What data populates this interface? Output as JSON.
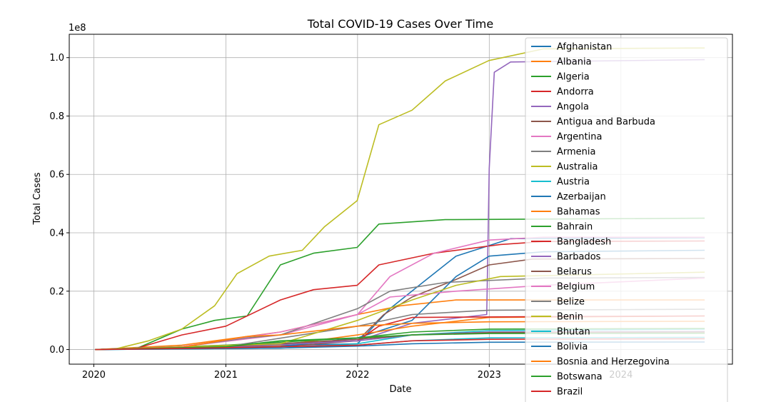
{
  "chart_data": {
    "type": "line",
    "title": "Total COVID-19 Cases Over Time",
    "xlabel": "Date",
    "ylabel": "Total Cases",
    "y_offset_text": "1e8",
    "xlim": [
      "2019-10-25",
      "2024-11-05"
    ],
    "ylim": [
      -5000000,
      108000000
    ],
    "x_ticks": [
      "2020",
      "2021",
      "2022",
      "2023",
      "2024"
    ],
    "y_ticks": [
      0,
      20000000,
      40000000,
      60000000,
      80000000,
      100000000
    ],
    "y_tick_labels": [
      "0.0",
      "0.2",
      "0.4",
      "0.6",
      "0.8",
      "1.0"
    ],
    "grid": true,
    "legend_position": "right",
    "series": [
      {
        "name": "Afghanistan",
        "color": "#1f77b4",
        "points": [
          [
            "2020-01-05",
            0
          ],
          [
            "2022-01-01",
            2000000
          ],
          [
            "2022-04-01",
            14000000
          ],
          [
            "2022-07-01",
            23000000
          ],
          [
            "2022-10-01",
            32000000
          ],
          [
            "2023-03-01",
            38000000
          ],
          [
            "2024-08-20",
            38300000
          ]
        ]
      },
      {
        "name": "Albania",
        "color": "#ff7f0e",
        "points": [
          [
            "2020-01-05",
            0
          ],
          [
            "2020-09-01",
            1500000
          ],
          [
            "2021-06-01",
            6000000
          ],
          [
            "2022-01-01",
            12000000
          ],
          [
            "2022-05-01",
            15000000
          ],
          [
            "2022-10-01",
            17000000
          ],
          [
            "2024-08-20",
            17000000
          ]
        ]
      },
      {
        "name": "Algeria",
        "color": "#2ca02c",
        "points": [
          [
            "2020-01-05",
            0
          ],
          [
            "2020-05-01",
            500000
          ],
          [
            "2020-09-01",
            7000000
          ],
          [
            "2020-12-01",
            10000000
          ],
          [
            "2021-03-01",
            11500000
          ],
          [
            "2021-06-01",
            29000000
          ],
          [
            "2021-09-01",
            33000000
          ],
          [
            "2021-12-31",
            35000000
          ],
          [
            "2022-03-01",
            43000000
          ],
          [
            "2022-09-01",
            44500000
          ],
          [
            "2024-08-20",
            45000000
          ]
        ]
      },
      {
        "name": "Andorra",
        "color": "#d62728",
        "points": [
          [
            "2020-01-05",
            0
          ],
          [
            "2020-05-01",
            500000
          ],
          [
            "2020-09-01",
            5000000
          ],
          [
            "2021-01-01",
            8000000
          ],
          [
            "2021-06-01",
            17000000
          ],
          [
            "2021-09-01",
            20500000
          ],
          [
            "2021-12-31",
            22000000
          ],
          [
            "2022-03-01",
            29000000
          ],
          [
            "2022-08-01",
            33000000
          ],
          [
            "2023-02-01",
            36000000
          ],
          [
            "2023-06-01",
            37000000
          ],
          [
            "2024-08-20",
            37200000
          ]
        ]
      },
      {
        "name": "Angola",
        "color": "#9467bd",
        "points": [
          [
            "2020-01-05",
            0
          ],
          [
            "2022-01-01",
            3000000
          ],
          [
            "2022-06-01",
            9000000
          ],
          [
            "2022-12-25",
            12000000
          ],
          [
            "2023-01-01",
            62000000
          ],
          [
            "2023-01-15",
            95000000
          ],
          [
            "2023-03-01",
            98500000
          ],
          [
            "2024-08-20",
            99300000
          ]
        ]
      },
      {
        "name": "Antigua and Barbuda",
        "color": "#8c564b",
        "points": [
          [
            "2020-01-05",
            0
          ],
          [
            "2021-06-01",
            1000000
          ],
          [
            "2022-01-01",
            3000000
          ],
          [
            "2022-03-15",
            12000000
          ],
          [
            "2022-06-01",
            18000000
          ],
          [
            "2022-10-01",
            24000000
          ],
          [
            "2023-01-01",
            29000000
          ],
          [
            "2023-05-01",
            31000000
          ],
          [
            "2024-08-20",
            31200000
          ]
        ]
      },
      {
        "name": "Argentina",
        "color": "#e377c2",
        "points": [
          [
            "2020-01-05",
            0
          ],
          [
            "2020-09-01",
            1000000
          ],
          [
            "2021-06-01",
            5000000
          ],
          [
            "2022-01-01",
            12000000
          ],
          [
            "2022-04-01",
            25000000
          ],
          [
            "2022-08-01",
            33000000
          ],
          [
            "2023-01-01",
            37500000
          ],
          [
            "2023-06-01",
            38500000
          ],
          [
            "2024-08-20",
            38500000
          ]
        ]
      },
      {
        "name": "Armenia",
        "color": "#7f7f7f",
        "points": [
          [
            "2020-01-05",
            0
          ],
          [
            "2020-09-01",
            1000000
          ],
          [
            "2021-03-01",
            4000000
          ],
          [
            "2021-06-01",
            5000000
          ],
          [
            "2022-01-01",
            14000000
          ],
          [
            "2022-04-01",
            20000000
          ],
          [
            "2022-09-01",
            23000000
          ],
          [
            "2023-06-01",
            24500000
          ],
          [
            "2024-08-20",
            24700000
          ]
        ]
      },
      {
        "name": "Australia",
        "color": "#bcbd22",
        "points": [
          [
            "2020-01-05",
            0
          ],
          [
            "2020-03-01",
            200000
          ],
          [
            "2020-06-01",
            3000000
          ],
          [
            "2020-09-01",
            7000000
          ],
          [
            "2020-12-01",
            15000000
          ],
          [
            "2021-02-01",
            26000000
          ],
          [
            "2021-05-01",
            32000000
          ],
          [
            "2021-08-01",
            34000000
          ],
          [
            "2021-10-01",
            42000000
          ],
          [
            "2021-12-31",
            51000000
          ],
          [
            "2022-03-01",
            77000000
          ],
          [
            "2022-06-01",
            82000000
          ],
          [
            "2022-09-01",
            92000000
          ],
          [
            "2022-12-31",
            99000000
          ],
          [
            "2023-06-01",
            103000000
          ],
          [
            "2024-08-20",
            103300000
          ]
        ]
      },
      {
        "name": "Austria",
        "color": "#17becf",
        "points": [
          [
            "2020-01-05",
            0
          ],
          [
            "2021-06-01",
            500000
          ],
          [
            "2022-01-01",
            2000000
          ],
          [
            "2022-06-01",
            5000000
          ],
          [
            "2023-01-01",
            6500000
          ],
          [
            "2024-08-20",
            7000000
          ]
        ]
      },
      {
        "name": "Azerbaijan",
        "color": "#1f77b4",
        "points": [
          [
            "2020-01-05",
            0
          ],
          [
            "2021-06-01",
            1000000
          ],
          [
            "2022-01-01",
            4000000
          ],
          [
            "2022-06-01",
            10000000
          ],
          [
            "2022-10-01",
            25000000
          ],
          [
            "2023-01-01",
            32000000
          ],
          [
            "2023-06-01",
            33500000
          ],
          [
            "2024-08-20",
            34000000
          ]
        ]
      },
      {
        "name": "Bahamas",
        "color": "#ff7f0e",
        "points": [
          [
            "2020-01-05",
            0
          ],
          [
            "2021-06-01",
            1500000
          ],
          [
            "2022-01-01",
            5000000
          ],
          [
            "2022-06-01",
            8000000
          ],
          [
            "2023-01-01",
            11000000
          ],
          [
            "2024-08-20",
            11500000
          ]
        ]
      },
      {
        "name": "Bahrain",
        "color": "#2ca02c",
        "points": [
          [
            "2020-01-05",
            0
          ],
          [
            "2021-01-01",
            1500000
          ],
          [
            "2022-01-01",
            4000000
          ],
          [
            "2022-06-01",
            6000000
          ],
          [
            "2023-01-01",
            7000000
          ],
          [
            "2024-08-20",
            7200000
          ]
        ]
      },
      {
        "name": "Bangladesh",
        "color": "#d62728",
        "points": [
          [
            "2020-01-05",
            0
          ],
          [
            "2021-01-01",
            1000000
          ],
          [
            "2022-01-01",
            3000000
          ],
          [
            "2022-03-01",
            8000000
          ],
          [
            "2022-06-01",
            11000000
          ],
          [
            "2023-06-01",
            11300000
          ],
          [
            "2024-08-20",
            11500000
          ]
        ]
      },
      {
        "name": "Barbados",
        "color": "#9467bd",
        "points": [
          [
            "2020-01-05",
            0
          ],
          [
            "2021-01-01",
            800000
          ],
          [
            "2022-01-01",
            3000000
          ],
          [
            "2022-06-01",
            5000000
          ],
          [
            "2023-01-01",
            6000000
          ],
          [
            "2024-08-20",
            6200000
          ]
        ]
      },
      {
        "name": "Belarus",
        "color": "#8c564b",
        "points": [
          [
            "2020-01-05",
            0
          ],
          [
            "2021-01-01",
            1000000
          ],
          [
            "2022-01-01",
            3500000
          ],
          [
            "2022-06-01",
            5000000
          ],
          [
            "2023-01-01",
            5800000
          ],
          [
            "2024-08-20",
            6000000
          ]
        ]
      },
      {
        "name": "Belgium",
        "color": "#e377c2",
        "points": [
          [
            "2020-01-05",
            0
          ],
          [
            "2020-09-01",
            1000000
          ],
          [
            "2021-06-01",
            6000000
          ],
          [
            "2022-01-01",
            12000000
          ],
          [
            "2022-04-01",
            18000000
          ],
          [
            "2022-10-01",
            20000000
          ],
          [
            "2023-06-01",
            22000000
          ],
          [
            "2024-08-20",
            24500000
          ]
        ]
      },
      {
        "name": "Belize",
        "color": "#7f7f7f",
        "points": [
          [
            "2020-01-05",
            0
          ],
          [
            "2021-01-01",
            1000000
          ],
          [
            "2022-01-01",
            8000000
          ],
          [
            "2022-06-01",
            12000000
          ],
          [
            "2023-01-01",
            13500000
          ],
          [
            "2024-08-20",
            13800000
          ]
        ]
      },
      {
        "name": "Benin",
        "color": "#bcbd22",
        "points": [
          [
            "2020-01-05",
            0
          ],
          [
            "2021-06-01",
            2000000
          ],
          [
            "2022-01-01",
            10000000
          ],
          [
            "2022-06-01",
            17000000
          ],
          [
            "2022-10-01",
            22000000
          ],
          [
            "2023-02-01",
            25000000
          ],
          [
            "2024-08-20",
            26500000
          ]
        ]
      },
      {
        "name": "Bhutan",
        "color": "#17becf",
        "points": [
          [
            "2020-01-05",
            0
          ],
          [
            "2021-06-01",
            500000
          ],
          [
            "2022-01-01",
            1500000
          ],
          [
            "2022-06-01",
            3000000
          ],
          [
            "2023-01-01",
            4000000
          ],
          [
            "2024-08-20",
            4200000
          ]
        ]
      },
      {
        "name": "Bolivia",
        "color": "#1f77b4",
        "points": [
          [
            "2020-01-05",
            0
          ],
          [
            "2021-06-01",
            500000
          ],
          [
            "2022-01-01",
            1200000
          ],
          [
            "2022-06-01",
            2000000
          ],
          [
            "2023-01-01",
            2500000
          ],
          [
            "2024-08-20",
            2600000
          ]
        ]
      },
      {
        "name": "Bosnia and Herzegovina",
        "color": "#ff7f0e",
        "points": [
          [
            "2020-01-05",
            0
          ],
          [
            "2020-09-01",
            800000
          ],
          [
            "2021-03-01",
            4500000
          ],
          [
            "2021-06-01",
            5000000
          ],
          [
            "2022-01-01",
            8000000
          ],
          [
            "2022-06-01",
            9000000
          ],
          [
            "2023-01-01",
            9500000
          ],
          [
            "2024-08-20",
            9700000
          ]
        ]
      },
      {
        "name": "Botswana",
        "color": "#2ca02c",
        "points": [
          [
            "2020-01-05",
            0
          ],
          [
            "2021-01-01",
            1000000
          ],
          [
            "2021-06-01",
            3000000
          ],
          [
            "2022-01-01",
            4000000
          ],
          [
            "2022-06-01",
            5000000
          ],
          [
            "2023-01-01",
            5500000
          ],
          [
            "2024-08-20",
            5600000
          ]
        ]
      },
      {
        "name": "Brazil",
        "color": "#d62728",
        "points": [
          [
            "2020-01-05",
            0
          ],
          [
            "2021-01-01",
            600000
          ],
          [
            "2022-01-01",
            1500000
          ],
          [
            "2022-06-01",
            3000000
          ],
          [
            "2023-01-01",
            3500000
          ],
          [
            "2024-08-20",
            3700000
          ]
        ]
      }
    ]
  }
}
